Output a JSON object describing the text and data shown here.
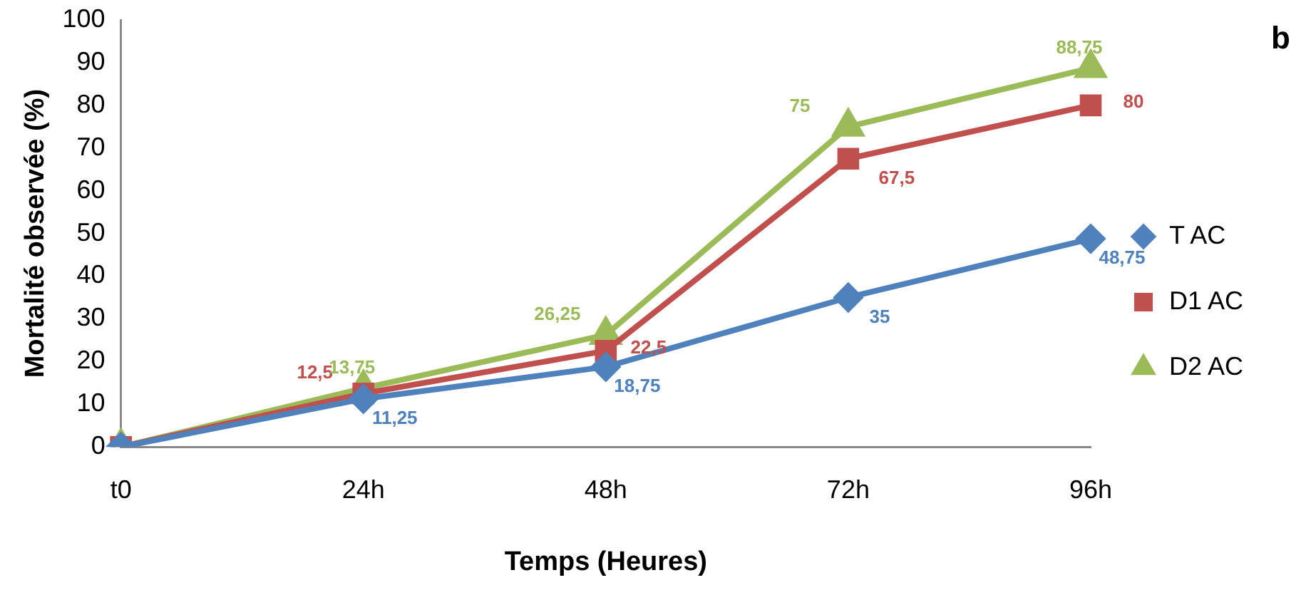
{
  "chart_data": {
    "type": "line",
    "xlabel": "Temps (Heures)",
    "ylabel": "Mortalité observée (%)",
    "annotations": [
      "b"
    ],
    "categories": [
      "t0",
      "24h",
      "48h",
      "72h",
      "96h"
    ],
    "ylim": [
      0,
      100
    ],
    "yticks": [
      0,
      10,
      20,
      30,
      40,
      50,
      60,
      70,
      80,
      90,
      100
    ],
    "grid": false,
    "legend": "right",
    "line_style": "solid",
    "series": [
      {
        "name": "T AC",
        "color": "#4f81bd",
        "marker": "diamond",
        "values": [
          0,
          11.25,
          18.75,
          35,
          48.75
        ],
        "value_labels": [
          null,
          "11,25",
          "18,75",
          "35",
          "48,75"
        ]
      },
      {
        "name": "D1 AC",
        "color": "#c0504d",
        "marker": "square",
        "values": [
          0,
          12.5,
          22.5,
          67.5,
          80
        ],
        "value_labels": [
          null,
          "12,5",
          "22,5",
          "67,5",
          "80"
        ]
      },
      {
        "name": "D2 AC",
        "color": "#9bbb59",
        "marker": "triangle",
        "values": [
          0,
          13.75,
          26.25,
          75,
          88.75
        ],
        "value_labels": [
          null,
          "13,75",
          "26,25",
          "75",
          "88,75"
        ]
      }
    ]
  }
}
